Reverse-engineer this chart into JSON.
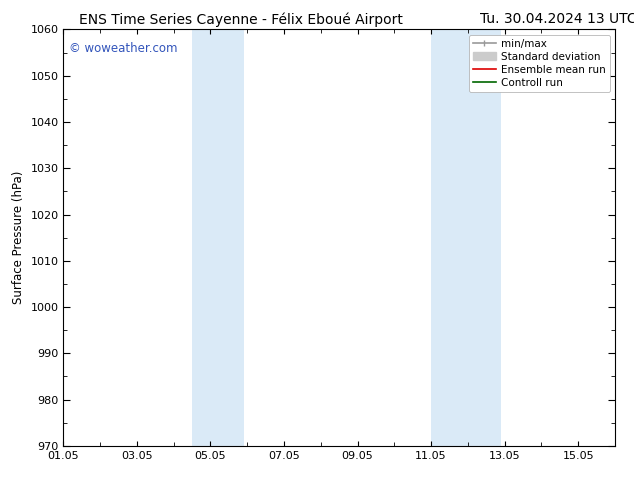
{
  "title_left": "ENS Time Series Cayenne - Félix Eboué Airport",
  "title_right": "Tu. 30.04.2024 13 UTC",
  "ylabel": "Surface Pressure (hPa)",
  "ylim": [
    970,
    1060
  ],
  "yticks": [
    970,
    980,
    990,
    1000,
    1010,
    1020,
    1030,
    1040,
    1050,
    1060
  ],
  "xtick_labels": [
    "01.05",
    "03.05",
    "05.05",
    "07.05",
    "09.05",
    "11.05",
    "13.05",
    "15.05"
  ],
  "xtick_positions": [
    1,
    3,
    5,
    7,
    9,
    11,
    13,
    15
  ],
  "xminor_positions": [
    1,
    2,
    3,
    4,
    5,
    6,
    7,
    8,
    9,
    10,
    11,
    12,
    13,
    14,
    15,
    16
  ],
  "xlim": [
    1,
    15.5
  ],
  "shaded_bands": [
    {
      "x_start": 4.5,
      "x_end": 5.9,
      "color": "#daeaf7"
    },
    {
      "x_start": 11.0,
      "x_end": 12.9,
      "color": "#daeaf7"
    }
  ],
  "watermark": "© woweather.com",
  "watermark_color": "#3355bb",
  "bg_color": "#ffffff",
  "plot_bg_color": "#ffffff",
  "legend_items": [
    {
      "label": "min/max",
      "color": "#999999",
      "lw": 1.2
    },
    {
      "label": "Standard deviation",
      "color": "#cccccc",
      "lw": 5
    },
    {
      "label": "Ensemble mean run",
      "color": "#dd0000",
      "lw": 1.2
    },
    {
      "label": "Controll run",
      "color": "#006600",
      "lw": 1.2
    }
  ],
  "title_fontsize": 10,
  "tick_fontsize": 8,
  "ylabel_fontsize": 8.5,
  "legend_fontsize": 7.5,
  "watermark_fontsize": 8.5
}
